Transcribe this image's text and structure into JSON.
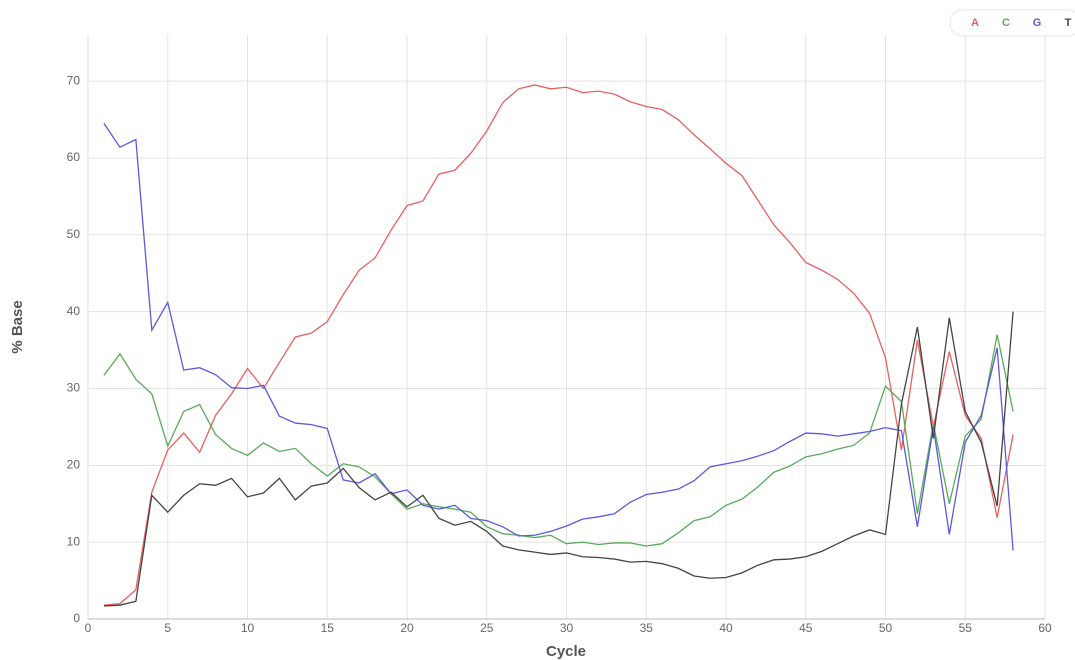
{
  "chart_data": {
    "type": "line",
    "x_label": "Cycle",
    "y_label": "% Base",
    "x": [
      1,
      2,
      3,
      4,
      5,
      6,
      7,
      8,
      9,
      10,
      11,
      12,
      13,
      14,
      15,
      16,
      17,
      18,
      19,
      20,
      21,
      22,
      23,
      24,
      25,
      26,
      27,
      28,
      29,
      30,
      31,
      32,
      33,
      34,
      35,
      36,
      37,
      38,
      39,
      40,
      41,
      42,
      43,
      44,
      45,
      46,
      47,
      48,
      49,
      50,
      51,
      52,
      53,
      54,
      55,
      56,
      57,
      58
    ],
    "series": [
      {
        "name": "A",
        "color": "#e8605f",
        "values": [
          1.8,
          2.0,
          3.8,
          16.5,
          22.0,
          24.2,
          21.7,
          26.5,
          29.3,
          32.6,
          30.0,
          33.4,
          36.7,
          37.2,
          38.7,
          42.2,
          45.4,
          47.0,
          50.6,
          53.8,
          54.4,
          57.9,
          58.4,
          60.6,
          63.5,
          67.2,
          69.0,
          69.5,
          69.0,
          69.2,
          68.5,
          68.7,
          68.3,
          67.3,
          66.7,
          66.3,
          65.0,
          63.0,
          61.2,
          59.3,
          57.7,
          54.5,
          51.3,
          49.0,
          46.4,
          45.4,
          44.2,
          42.4,
          39.8,
          34.0,
          22.0,
          36.3,
          25.0,
          34.8,
          26.5,
          23.5,
          13.2,
          24.0
        ]
      },
      {
        "name": "C",
        "color": "#5aaa5a",
        "values": [
          31.7,
          34.5,
          31.2,
          29.3,
          22.5,
          27.0,
          27.9,
          24.0,
          22.2,
          21.3,
          22.9,
          21.8,
          22.2,
          20.2,
          18.6,
          20.2,
          19.8,
          18.5,
          16.3,
          14.3,
          15.0,
          14.6,
          14.3,
          13.9,
          12.0,
          11.1,
          10.9,
          10.6,
          10.9,
          9.8,
          10.0,
          9.7,
          9.9,
          9.9,
          9.5,
          9.8,
          11.2,
          12.8,
          13.3,
          14.8,
          15.6,
          17.2,
          19.1,
          19.9,
          21.1,
          21.5,
          22.1,
          22.6,
          24.2,
          30.3,
          28.3,
          13.7,
          25.4,
          15.0,
          23.8,
          26.0,
          37.0,
          27.0
        ]
      },
      {
        "name": "G",
        "color": "#5a5ae0",
        "values": [
          64.5,
          61.4,
          62.4,
          37.6,
          41.2,
          32.4,
          32.7,
          31.8,
          30.1,
          30.0,
          30.4,
          26.4,
          25.5,
          25.3,
          24.8,
          18.1,
          17.7,
          18.9,
          16.3,
          16.8,
          14.8,
          14.3,
          14.8,
          13.1,
          12.8,
          12.0,
          10.8,
          10.9,
          11.4,
          12.1,
          13.0,
          13.3,
          13.7,
          15.2,
          16.2,
          16.5,
          16.9,
          18.0,
          19.8,
          20.2,
          20.6,
          21.2,
          21.9,
          23.1,
          24.2,
          24.1,
          23.8,
          24.1,
          24.4,
          24.9,
          24.5,
          12.0,
          25.0,
          11.0,
          23.0,
          26.5,
          35.3,
          8.9
        ]
      },
      {
        "name": "T",
        "color": "#444444",
        "values": [
          1.7,
          1.8,
          2.3,
          16.1,
          13.9,
          16.1,
          17.6,
          17.4,
          18.3,
          15.9,
          16.4,
          18.3,
          15.5,
          17.3,
          17.7,
          19.6,
          17.1,
          15.5,
          16.5,
          14.6,
          16.1,
          13.1,
          12.2,
          12.7,
          11.4,
          9.5,
          9.0,
          8.7,
          8.4,
          8.6,
          8.1,
          8.0,
          7.8,
          7.4,
          7.5,
          7.2,
          6.6,
          5.6,
          5.3,
          5.4,
          6.0,
          7.0,
          7.7,
          7.8,
          8.1,
          8.8,
          9.8,
          10.8,
          11.6,
          11.0,
          28.0,
          38.0,
          23.5,
          39.2,
          27.0,
          23.0,
          14.7,
          40.0
        ]
      }
    ],
    "xlim": [
      0,
      60
    ],
    "xticks": [
      0,
      5,
      10,
      15,
      20,
      25,
      30,
      35,
      40,
      45,
      50,
      55,
      60
    ],
    "ylim": [
      0,
      76
    ],
    "yticks": [
      0,
      10,
      20,
      30,
      40,
      50,
      60,
      70
    ],
    "grid": true,
    "legend": "top-right"
  }
}
